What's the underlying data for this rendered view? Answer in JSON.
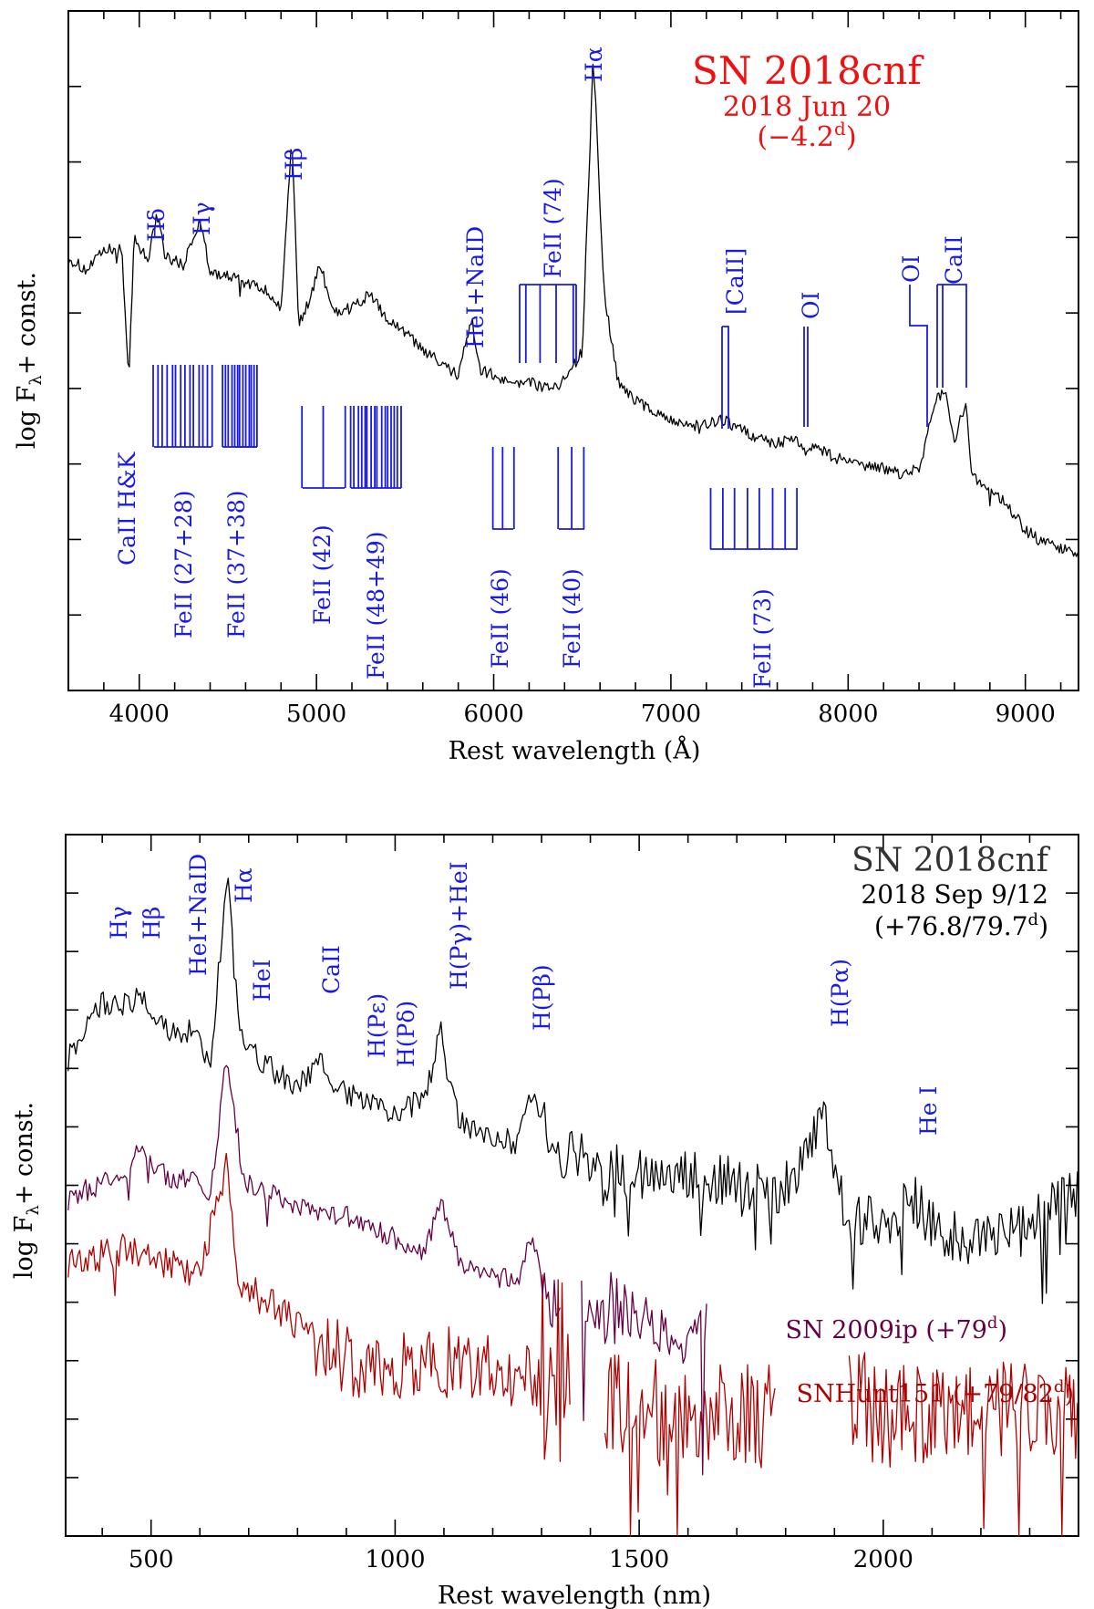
{
  "chart_data": [
    {
      "type": "line",
      "xlabel": "Rest wavelength (Å)",
      "ylabel": "log Fλ + const.",
      "xlim": [
        3600,
        9300
      ],
      "xticks": [
        "4000",
        "5000",
        "6000",
        "7000",
        "8000",
        "9000"
      ],
      "title": "SN 2018cnf",
      "subtitle": "2018 Jun 20",
      "phase": "(−4.2d)",
      "series": [
        {
          "name": "SN 2018cnf",
          "color": "#000000",
          "points": [
            [
              3600,
              0.6
            ],
            [
              3700,
              0.58
            ],
            [
              3800,
              0.61
            ],
            [
              3900,
              0.62
            ],
            [
              3940,
              0.4
            ],
            [
              3970,
              0.63
            ],
            [
              4050,
              0.6
            ],
            [
              4102,
              0.67
            ],
            [
              4150,
              0.6
            ],
            [
              4250,
              0.59
            ],
            [
              4340,
              0.66
            ],
            [
              4400,
              0.58
            ],
            [
              4500,
              0.57
            ],
            [
              4600,
              0.56
            ],
            [
              4700,
              0.55
            ],
            [
              4800,
              0.52
            ],
            [
              4861,
              0.79
            ],
            [
              4900,
              0.49
            ],
            [
              4960,
              0.53
            ],
            [
              5020,
              0.59
            ],
            [
              5100,
              0.51
            ],
            [
              5200,
              0.52
            ],
            [
              5300,
              0.54
            ],
            [
              5400,
              0.5
            ],
            [
              5500,
              0.48
            ],
            [
              5600,
              0.45
            ],
            [
              5700,
              0.43
            ],
            [
              5800,
              0.41
            ],
            [
              5876,
              0.5
            ],
            [
              5920,
              0.42
            ],
            [
              6000,
              0.41
            ],
            [
              6100,
              0.4
            ],
            [
              6200,
              0.4
            ],
            [
              6300,
              0.39
            ],
            [
              6400,
              0.4
            ],
            [
              6500,
              0.45
            ],
            [
              6563,
              0.93
            ],
            [
              6620,
              0.55
            ],
            [
              6700,
              0.4
            ],
            [
              6800,
              0.37
            ],
            [
              6900,
              0.35
            ],
            [
              7000,
              0.34
            ],
            [
              7100,
              0.33
            ],
            [
              7200,
              0.33
            ],
            [
              7300,
              0.34
            ],
            [
              7400,
              0.32
            ],
            [
              7500,
              0.31
            ],
            [
              7600,
              0.3
            ],
            [
              7700,
              0.31
            ],
            [
              7770,
              0.28
            ],
            [
              7800,
              0.3
            ],
            [
              7900,
              0.28
            ],
            [
              8000,
              0.27
            ],
            [
              8100,
              0.26
            ],
            [
              8200,
              0.26
            ],
            [
              8300,
              0.25
            ],
            [
              8400,
              0.26
            ],
            [
              8498,
              0.37
            ],
            [
              8542,
              0.39
            ],
            [
              8600,
              0.3
            ],
            [
              8662,
              0.37
            ],
            [
              8700,
              0.25
            ],
            [
              8800,
              0.22
            ],
            [
              8900,
              0.2
            ],
            [
              9000,
              0.16
            ],
            [
              9100,
              0.14
            ],
            [
              9200,
              0.13
            ],
            [
              9300,
              0.12
            ]
          ]
        }
      ],
      "line_ids": [
        "CaII H&K",
        "Hδ",
        "Hγ",
        "Hβ",
        "HeI+NaID",
        "FeII (74)",
        "Hα",
        "[CaII]",
        "OI",
        "OI",
        "CaII"
      ],
      "multiplets": [
        "FeII (27+28)",
        "FeII (37+38)",
        "FeII (42)",
        "FeII (48+49)",
        "FeII (46)",
        "FeII (40)",
        "FeII (73)"
      ]
    },
    {
      "type": "line",
      "xlabel": "Rest wavelength (nm)",
      "ylabel": "log Fλ + const.",
      "xlim": [
        325,
        2400
      ],
      "xticks": [
        "500",
        "1000",
        "1500",
        "2000"
      ],
      "title": "SN 2018cnf",
      "subtitle": "2018 Sep 9/12",
      "phase": "(+76.8/79.7d)",
      "series": [
        {
          "name": "SN 2018cnf",
          "color": "#000000",
          "points": [
            [
              330,
              0.6
            ],
            [
              400,
              0.7
            ],
            [
              450,
              0.7
            ],
            [
              480,
              0.71
            ],
            [
              500,
              0.69
            ],
            [
              550,
              0.64
            ],
            [
              590,
              0.66
            ],
            [
              620,
              0.58
            ],
            [
              656,
              0.93
            ],
            [
              680,
              0.65
            ],
            [
              720,
              0.6
            ],
            [
              750,
              0.58
            ],
            [
              800,
              0.55
            ],
            [
              850,
              0.6
            ],
            [
              880,
              0.55
            ],
            [
              950,
              0.52
            ],
            [
              1000,
              0.5
            ],
            [
              1060,
              0.53
            ],
            [
              1094,
              0.65
            ],
            [
              1130,
              0.49
            ],
            [
              1200,
              0.46
            ],
            [
              1250,
              0.45
            ],
            [
              1282,
              0.55
            ],
            [
              1320,
              0.43
            ],
            [
              1400,
              0.42
            ],
            [
              1500,
              0.4
            ],
            [
              1600,
              0.39
            ],
            [
              1700,
              0.38
            ],
            [
              1800,
              0.37
            ],
            [
              1875,
              0.5
            ],
            [
              1920,
              0.33
            ],
            [
              2000,
              0.3
            ],
            [
              2058,
              0.36
            ],
            [
              2100,
              0.3
            ],
            [
              2200,
              0.27
            ],
            [
              2300,
              0.3
            ],
            [
              2400,
              0.37
            ]
          ]
        },
        {
          "name": "SN 2009ip (+79d)",
          "color": "#660044",
          "points": [
            [
              330,
              0.35
            ],
            [
              400,
              0.38
            ],
            [
              450,
              0.4
            ],
            [
              480,
              0.44
            ],
            [
              520,
              0.4
            ],
            [
              560,
              0.38
            ],
            [
              590,
              0.41
            ],
            [
              620,
              0.34
            ],
            [
              656,
              0.61
            ],
            [
              690,
              0.38
            ],
            [
              750,
              0.36
            ],
            [
              800,
              0.34
            ],
            [
              860,
              0.33
            ],
            [
              900,
              0.32
            ],
            [
              1000,
              0.28
            ],
            [
              1060,
              0.26
            ],
            [
              1094,
              0.34
            ],
            [
              1130,
              0.24
            ],
            [
              1200,
              0.22
            ],
            [
              1250,
              0.2
            ],
            [
              1282,
              0.3
            ],
            [
              1300,
              0.19
            ],
            [
              1350,
              0.17
            ],
            [
              1440,
              0.16
            ],
            [
              1500,
              0.14
            ],
            [
              1600,
              0.11
            ],
            [
              1640,
              0.1
            ]
          ]
        },
        {
          "name": "SNHunt151 (+79/82d)",
          "color": "#b00000",
          "points": [
            [
              330,
              0.24
            ],
            [
              400,
              0.25
            ],
            [
              450,
              0.26
            ],
            [
              500,
              0.25
            ],
            [
              550,
              0.23
            ],
            [
              600,
              0.22
            ],
            [
              656,
              0.42
            ],
            [
              680,
              0.2
            ],
            [
              750,
              0.16
            ],
            [
              850,
              0.09
            ],
            [
              900,
              0.06
            ],
            [
              1000,
              0.06
            ],
            [
              1100,
              0.06
            ],
            [
              1200,
              0.04
            ],
            [
              1300,
              0.03
            ],
            [
              1350,
              0.02
            ],
            [
              1430,
              0.0
            ],
            [
              1500,
              -0.02
            ],
            [
              1600,
              -0.03
            ],
            [
              1700,
              -0.04
            ],
            [
              1780,
              -0.04
            ],
            [
              1930,
              -0.01
            ],
            [
              2000,
              -0.03
            ],
            [
              2100,
              -0.05
            ],
            [
              2200,
              -0.04
            ],
            [
              2300,
              -0.03
            ],
            [
              2400,
              -0.02
            ]
          ]
        }
      ],
      "line_ids": [
        "Hγ",
        "Hβ",
        "HeI+NaID",
        "Hα",
        "HeI",
        "CaII",
        "H(Pε)",
        "H(Pδ)",
        "H(Pγ)+HeI",
        "H(Pβ)",
        "H(Pα)",
        "He I"
      ]
    }
  ]
}
